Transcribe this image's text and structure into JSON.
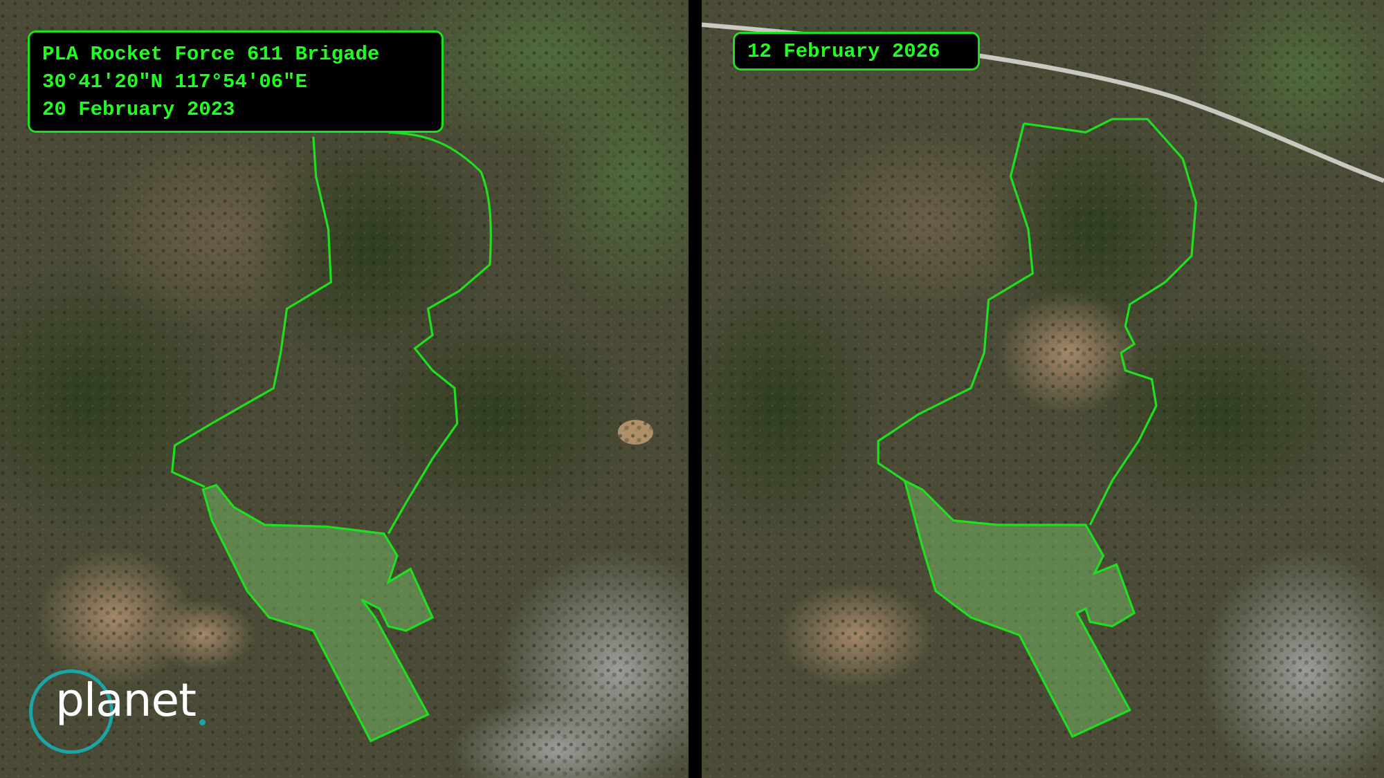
{
  "left_image": {
    "title": "PLA Rocket Force 611 Brigade",
    "coordinates": "30°41'20\"N 117°54'06\"E",
    "date": "20 February 2023"
  },
  "right_image": {
    "date": "12 February 2026"
  },
  "logo": {
    "text": "planet"
  },
  "colors": {
    "outline": "#1fe01f",
    "label_text": "#1fff1f",
    "label_bg": "#000000",
    "logo_accent": "#1aa6a6"
  }
}
